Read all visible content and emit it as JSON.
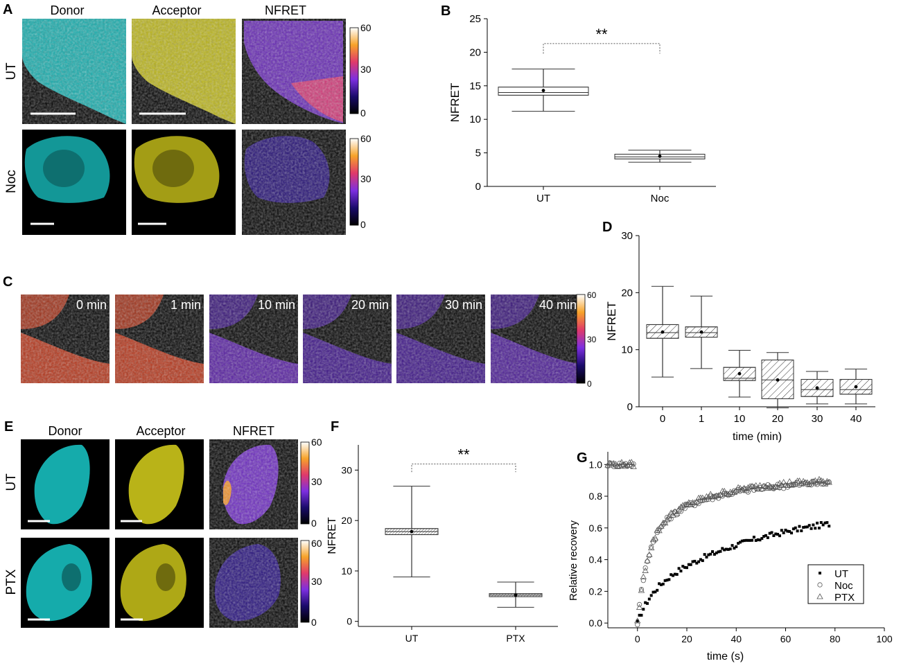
{
  "panel_letters": {
    "a": "A",
    "b": "B",
    "c": "C",
    "d": "D",
    "e": "E",
    "f": "F",
    "g": "G"
  },
  "panel_a": {
    "columns": [
      "Donor",
      "Acceptor",
      "NFRET"
    ],
    "rows": [
      "UT",
      "Noc"
    ],
    "colorbar_ticks": [
      "60",
      "30",
      "0"
    ]
  },
  "panel_c": {
    "timepoints": [
      "0 min",
      "1 min",
      "10 min",
      "20 min",
      "30 min",
      "40 min"
    ],
    "colorbar_ticks": [
      "60",
      "30",
      "0"
    ]
  },
  "panel_e": {
    "columns": [
      "Donor",
      "Acceptor",
      "NFRET"
    ],
    "rows": [
      "UT",
      "PTX"
    ],
    "colorbar_ticks": [
      "60",
      "30",
      "0"
    ]
  },
  "colors": {
    "donor": "#19c9c9",
    "acceptor": "#d9d21c",
    "nfret_low": "#1a0b6b",
    "nfret_mid": "#7d2fe0",
    "nfret_high": "#f0902a"
  },
  "chart_data": [
    {
      "id": "B",
      "type": "box",
      "xlabel": "",
      "ylabel": "NFRET",
      "ylim": [
        0,
        25
      ],
      "yticks": [
        0,
        5,
        10,
        15,
        20,
        25
      ],
      "hatched": false,
      "significance": "**",
      "categories": [
        "UT",
        "Noc"
      ],
      "boxes": [
        {
          "category": "UT",
          "whisker_low": 11.2,
          "q1": 13.6,
          "median": 14.0,
          "q3": 14.8,
          "whisker_high": 17.5,
          "mean": 14.3
        },
        {
          "category": "Noc",
          "whisker_low": 3.6,
          "q1": 4.1,
          "median": 4.4,
          "q3": 4.8,
          "whisker_high": 5.4,
          "mean": 4.5
        }
      ]
    },
    {
      "id": "D",
      "type": "box",
      "xlabel": "time (min)",
      "ylabel": "NFRET",
      "ylim": [
        0,
        30
      ],
      "yticks": [
        0,
        10,
        20,
        30
      ],
      "hatched": true,
      "categories": [
        "0",
        "1",
        "10",
        "20",
        "30",
        "40"
      ],
      "boxes": [
        {
          "category": "0",
          "whisker_low": 5.2,
          "q1": 12.0,
          "median": 13.0,
          "q3": 14.4,
          "whisker_high": 21.1,
          "mean": 13.1
        },
        {
          "category": "1",
          "whisker_low": 6.7,
          "q1": 12.2,
          "median": 13.0,
          "q3": 14.0,
          "whisker_high": 19.4,
          "mean": 13.1
        },
        {
          "category": "10",
          "whisker_low": 1.7,
          "q1": 4.6,
          "median": 5.0,
          "q3": 6.9,
          "whisker_high": 9.9,
          "mean": 5.8
        },
        {
          "category": "20",
          "whisker_low": -0.2,
          "q1": 1.4,
          "median": 4.7,
          "q3": 8.2,
          "whisker_high": 9.5,
          "mean": 4.7
        },
        {
          "category": "30",
          "whisker_low": 0.5,
          "q1": 1.8,
          "median": 3.0,
          "q3": 4.8,
          "whisker_high": 6.2,
          "mean": 3.3
        },
        {
          "category": "40",
          "whisker_low": 0.5,
          "q1": 2.2,
          "median": 3.0,
          "q3": 4.8,
          "whisker_high": 6.6,
          "mean": 3.5
        }
      ]
    },
    {
      "id": "F",
      "type": "box",
      "xlabel": "",
      "ylabel": "NFRET",
      "ylim": [
        -1,
        35
      ],
      "yticks": [
        0,
        10,
        20,
        30
      ],
      "hatched": true,
      "significance": "**",
      "categories": [
        "UT",
        "PTX"
      ],
      "boxes": [
        {
          "category": "UT",
          "whisker_low": 8.8,
          "q1": 17.2,
          "median": 17.8,
          "q3": 18.4,
          "whisker_high": 26.8,
          "mean": 17.8
        },
        {
          "category": "PTX",
          "whisker_low": 2.8,
          "q1": 4.9,
          "median": 5.2,
          "q3": 5.5,
          "whisker_high": 7.8,
          "mean": 5.2
        }
      ]
    },
    {
      "id": "G",
      "type": "scatter",
      "xlabel": "time (s)",
      "ylabel": "Relative recovery",
      "xlim": [
        -12,
        100
      ],
      "ylim": [
        -0.03,
        1.08
      ],
      "xticks": [
        0,
        20,
        40,
        60,
        80,
        100
      ],
      "yticks": [
        0.0,
        0.2,
        0.4,
        0.6,
        0.8,
        1.0
      ],
      "legend_position": "bottom-right",
      "series": [
        {
          "name": "UT",
          "marker": "filled-square",
          "prebleach": {
            "t": [],
            "y": []
          },
          "recovery": {
            "t_start": 0,
            "t_end": 78,
            "dt": 0.8,
            "plateau": 0.78,
            "amp": 0.14,
            "tau_fast": 6,
            "tau_slow": 50,
            "frac_fast": 0.22
          }
        },
        {
          "name": "Noc",
          "marker": "open-circle",
          "prebleach": {
            "t_start": -12,
            "t_end": -1,
            "dt": 0.8,
            "y": 1.0
          },
          "recovery": {
            "t_start": 0,
            "t_end": 78,
            "dt": 0.8,
            "plateau": 0.9,
            "tau_fast": 4,
            "tau_slow": 25,
            "frac_fast": 0.6
          }
        },
        {
          "name": "PTX",
          "marker": "open-triangle",
          "prebleach": {
            "t_start": -12,
            "t_end": -1,
            "dt": 0.8,
            "y": 1.0
          },
          "recovery": {
            "t_start": 0,
            "t_end": 78,
            "dt": 0.8,
            "plateau": 0.91,
            "tau_fast": 4,
            "tau_slow": 25,
            "frac_fast": 0.6
          }
        }
      ]
    }
  ]
}
